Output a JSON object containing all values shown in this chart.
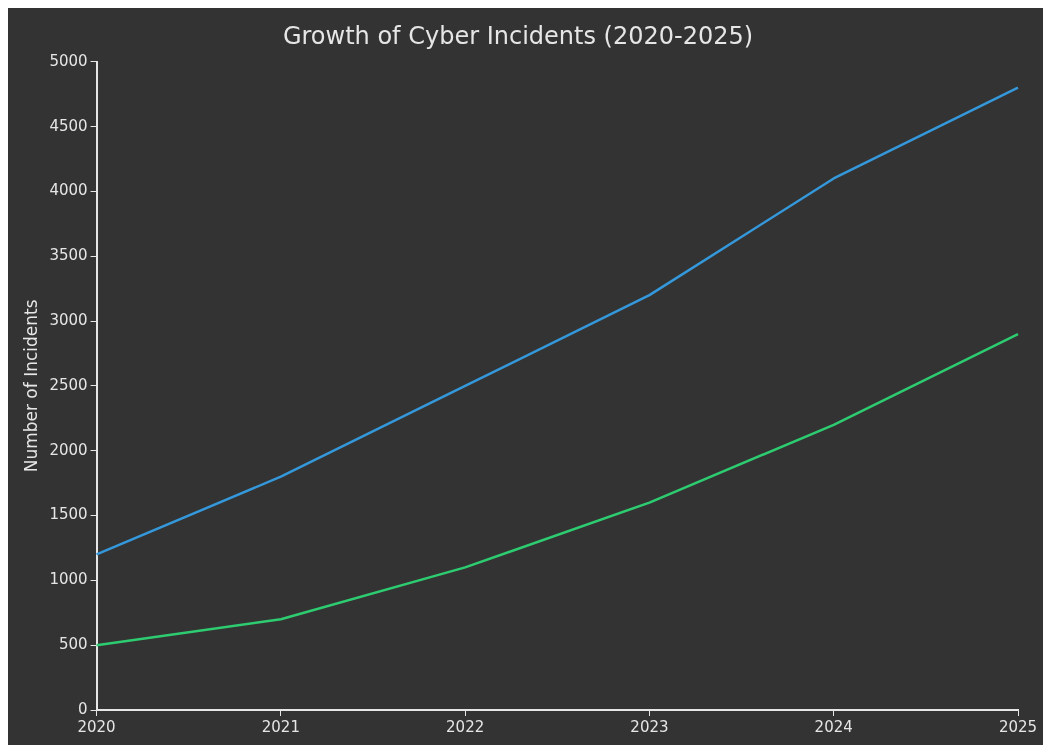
{
  "chart_data": {
    "type": "line",
    "title": "Growth of Cyber Incidents (2020-2025)",
    "ylabel": "Number of Incidents",
    "categories": [
      "2020",
      "2021",
      "2022",
      "2023",
      "2024",
      "2025"
    ],
    "series": [
      {
        "color": "#3498db",
        "values": [
          1200,
          1800,
          2500,
          3200,
          4100,
          4800
        ]
      },
      {
        "color": "#2ecc71",
        "values": [
          500,
          700,
          1100,
          1600,
          2200,
          2900
        ]
      }
    ],
    "ylim": [
      0,
      5000
    ],
    "yticks": [
      0,
      500,
      1000,
      1500,
      2000,
      2500,
      3000,
      3500,
      4000,
      4500,
      5000
    ],
    "grid": false,
    "legend": false,
    "marker": "none",
    "line_style": "solid"
  }
}
